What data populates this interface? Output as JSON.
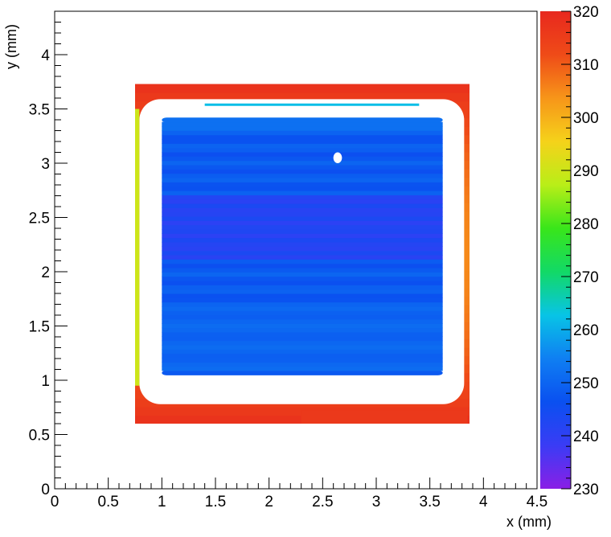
{
  "chart_data": {
    "type": "heatmap",
    "title": "",
    "xlabel": "x (mm)",
    "ylabel": "y (mm)",
    "xlim": [
      0,
      4.5
    ],
    "ylim": [
      0,
      4.4
    ],
    "x_ticks": [
      "0",
      "0.5",
      "1",
      "1.5",
      "2",
      "2.5",
      "3",
      "3.5",
      "4",
      "4.5"
    ],
    "y_ticks": [
      "0",
      "0.5",
      "1",
      "1.5",
      "2",
      "2.5",
      "3",
      "3.5",
      "4"
    ],
    "colorbar": {
      "min": 230,
      "max": 320,
      "ticks": [
        "230",
        "240",
        "250",
        "260",
        "270",
        "280",
        "290",
        "300",
        "310",
        "320"
      ],
      "palette": [
        "#8a1fe6",
        "#3a3cf5",
        "#0a50f0",
        "#0f7ff2",
        "#08c4e6",
        "#12d966",
        "#39e61a",
        "#b9ee18",
        "#f5d21a",
        "#f79519",
        "#ef4b18",
        "#e8281e"
      ]
    },
    "grid": false,
    "legend": "colorbar-right",
    "regions": [
      {
        "name": "outer-frame",
        "x": [
          0.75,
          3.87
        ],
        "y": [
          0.6,
          3.73
        ],
        "value": 312
      },
      {
        "name": "gap",
        "x": [
          0.79,
          3.82
        ],
        "y": [
          0.78,
          3.59
        ],
        "value": null
      },
      {
        "name": "bottom-strip",
        "x": [
          2.3,
          3.85
        ],
        "y": [
          0.6,
          0.72
        ],
        "value": 316
      },
      {
        "name": "left-edge-line",
        "x": [
          0.75,
          0.79
        ],
        "y": [
          0.95,
          3.5
        ],
        "value": 290
      },
      {
        "name": "top-streak",
        "x": [
          1.4,
          3.4
        ],
        "y": [
          3.5,
          3.55
        ],
        "value": 262
      },
      {
        "name": "central-square",
        "x": [
          1.0,
          3.62
        ],
        "y": [
          1.05,
          3.42
        ],
        "value": 248
      },
      {
        "name": "band-1",
        "x": [
          1.0,
          3.62
        ],
        "y": [
          2.1,
          2.7
        ],
        "value": 242
      },
      {
        "name": "band-2",
        "x": [
          1.0,
          3.62
        ],
        "y": [
          1.1,
          1.7
        ],
        "value": 250
      },
      {
        "name": "top-row",
        "x": [
          1.0,
          3.62
        ],
        "y": [
          3.3,
          3.42
        ],
        "value": 252
      },
      {
        "name": "hole",
        "x": [
          2.6,
          2.68
        ],
        "y": [
          3.0,
          3.1
        ],
        "value": null
      }
    ]
  }
}
